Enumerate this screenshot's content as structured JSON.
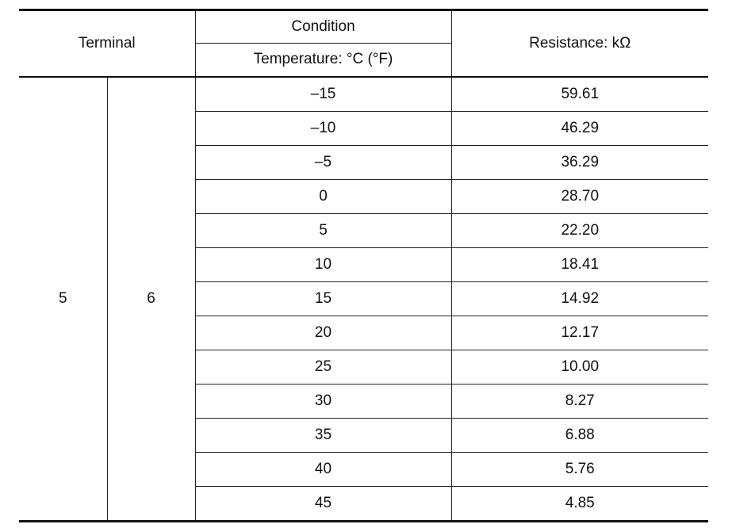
{
  "header": {
    "terminal": "Terminal",
    "condition": "Condition",
    "temperature": "Temperature: °C (°F)",
    "resistance": "Resistance: kΩ"
  },
  "terminals": {
    "positive": "5",
    "negative": "6"
  },
  "rows": [
    {
      "temp": "–15",
      "resistance": "59.61"
    },
    {
      "temp": "–10",
      "resistance": "46.29"
    },
    {
      "temp": "–5",
      "resistance": "36.29"
    },
    {
      "temp": "0",
      "resistance": "28.70"
    },
    {
      "temp": "5",
      "resistance": "22.20"
    },
    {
      "temp": "10",
      "resistance": "18.41"
    },
    {
      "temp": "15",
      "resistance": "14.92"
    },
    {
      "temp": "20",
      "resistance": "12.17"
    },
    {
      "temp": "25",
      "resistance": "10.00"
    },
    {
      "temp": "30",
      "resistance": "8.27"
    },
    {
      "temp": "35",
      "resistance": "6.88"
    },
    {
      "temp": "40",
      "resistance": "5.76"
    },
    {
      "temp": "45",
      "resistance": "4.85"
    }
  ]
}
